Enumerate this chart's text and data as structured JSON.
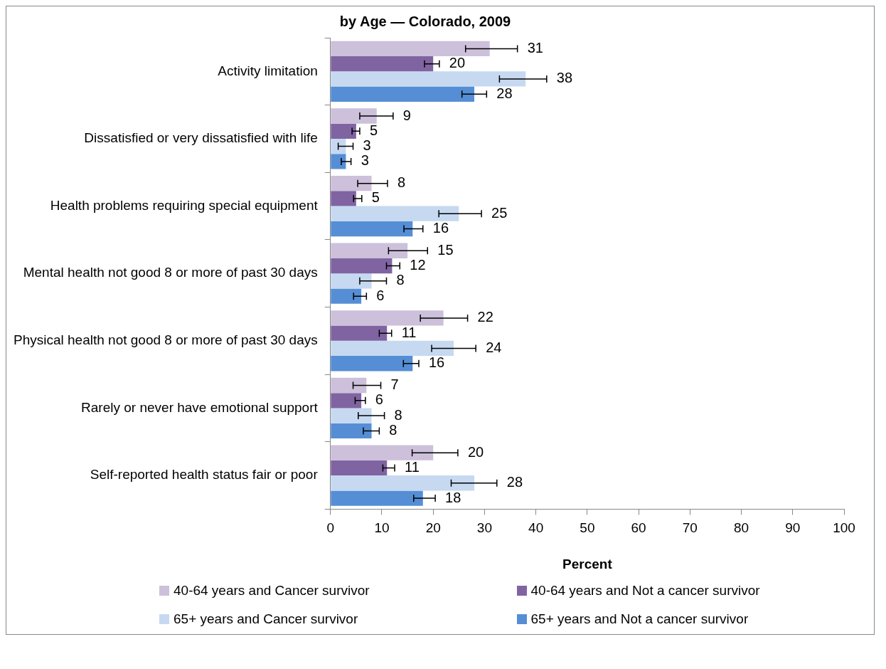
{
  "chart_data": {
    "type": "bar",
    "orientation": "horizontal",
    "title": "by Age — Colorado, 2009",
    "xlabel": "Percent",
    "categories": [
      "Activity limitation",
      "Dissatisfied or very dissatisfied with life",
      "Health problems requiring special equipment",
      "Mental health not good 8 or more of past 30 days",
      "Physical health not good 8 or more of past 30 days",
      "Rarely or never have emotional support",
      "Self-reported health status fair or poor"
    ],
    "series": [
      {
        "name": "40-64 years and Cancer survivor",
        "color": "#ccc0da",
        "values": [
          31,
          9,
          8,
          15,
          22,
          7,
          20
        ],
        "errors": [
          [
            26.3,
            36.4
          ],
          [
            5.7,
            12.2
          ],
          [
            5.3,
            11.1
          ],
          [
            11.3,
            18.9
          ],
          [
            17.5,
            26.7
          ],
          [
            4.4,
            9.8
          ],
          [
            15.9,
            24.8
          ]
        ]
      },
      {
        "name": "40-64 years and Not a cancer survivor",
        "color": "#8064a2",
        "values": [
          20,
          5,
          5,
          12,
          11,
          6,
          11
        ],
        "errors": [
          [
            18.3,
            21.2
          ],
          [
            4.2,
            5.7
          ],
          [
            4.5,
            6.1
          ],
          [
            10.9,
            13.5
          ],
          [
            9.5,
            11.9
          ],
          [
            4.8,
            6.8
          ],
          [
            10.2,
            12.5
          ]
        ]
      },
      {
        "name": "65+ years and Cancer survivor",
        "color": "#c6d9f1",
        "values": [
          38,
          3,
          25,
          8,
          24,
          8,
          28
        ],
        "errors": [
          [
            32.9,
            42.1
          ],
          [
            1.5,
            4.4
          ],
          [
            21.1,
            29.4
          ],
          [
            5.7,
            10.9
          ],
          [
            19.7,
            28.3
          ],
          [
            5.4,
            10.5
          ],
          [
            23.5,
            32.4
          ]
        ]
      },
      {
        "name": "65+ years and Not a cancer survivor",
        "color": "#558ed5",
        "values": [
          28,
          3,
          16,
          6,
          16,
          8,
          18
        ],
        "errors": [
          [
            25.6,
            30.4
          ],
          [
            2.1,
            4.0
          ],
          [
            14.3,
            18.0
          ],
          [
            4.5,
            7.0
          ],
          [
            14.2,
            17.2
          ],
          [
            6.4,
            9.5
          ],
          [
            16.2,
            20.4
          ]
        ]
      }
    ],
    "xlim": [
      0,
      100
    ],
    "xticks": [
      0,
      10,
      20,
      30,
      40,
      50,
      60,
      70,
      80,
      90,
      100
    ],
    "grid": false,
    "legend": "bottom",
    "data_labels": true
  }
}
